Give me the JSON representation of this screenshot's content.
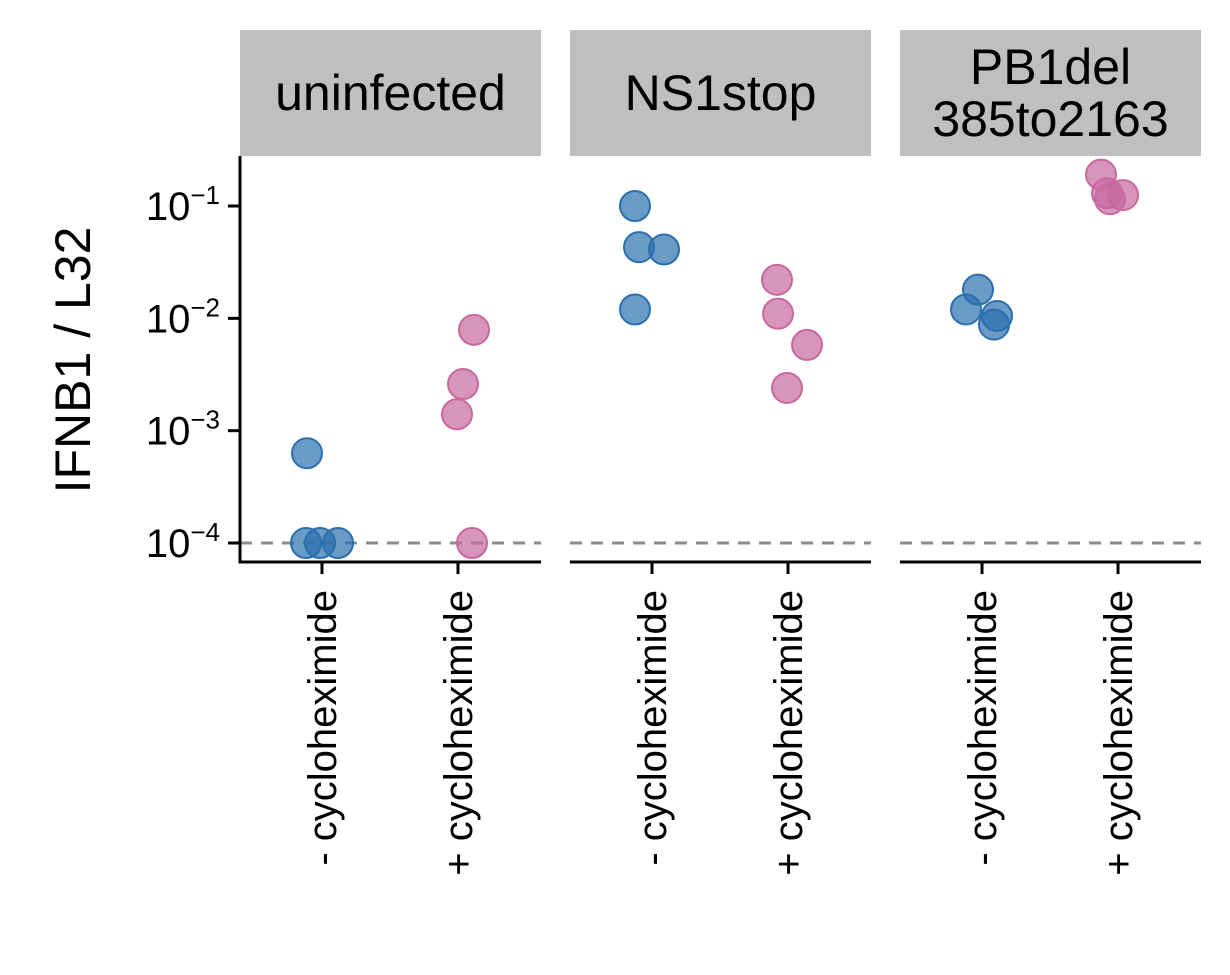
{
  "chart_data": {
    "type": "scatter",
    "ylabel": "IFNB1 / L32",
    "xlabel": "",
    "yscale": "log",
    "ylim": [
      7e-05,
      0.28
    ],
    "yticks": [
      {
        "value": 0.1,
        "base": "10",
        "exp": "−1"
      },
      {
        "value": 0.01,
        "base": "10",
        "exp": "−2"
      },
      {
        "value": 0.001,
        "base": "10",
        "exp": "−3"
      },
      {
        "value": 0.0001,
        "base": "10",
        "exp": "−4"
      }
    ],
    "detection_limit": 0.0001,
    "categories": [
      "- cycloheximide",
      "+ cycloheximide"
    ],
    "facets": [
      {
        "label_lines": [
          "uninfected"
        ],
        "points": [
          {
            "category": "- cycloheximide",
            "values": [
              0.00063,
              0.0001,
              0.0001,
              0.0001
            ]
          },
          {
            "category": "+ cycloheximide",
            "values": [
              0.0079,
              0.0026,
              0.0014,
              0.0001
            ]
          }
        ]
      },
      {
        "label_lines": [
          "NS1stop"
        ],
        "points": [
          {
            "category": "- cycloheximide",
            "values": [
              0.1,
              0.043,
              0.041,
              0.012
            ]
          },
          {
            "category": "+ cycloheximide",
            "values": [
              0.022,
              0.011,
              0.0058,
              0.0024
            ]
          }
        ]
      },
      {
        "label_lines": [
          "PB1del",
          "385to2163"
        ],
        "points": [
          {
            "category": "- cycloheximide",
            "values": [
              0.018,
              0.012,
              0.0105,
              0.0088
            ]
          },
          {
            "category": "+ cycloheximide",
            "values": [
              0.19,
              0.13,
              0.125,
              0.115
            ]
          }
        ]
      }
    ],
    "colors": {
      "minus": "#2b6fae",
      "plus": "#c8689f",
      "facet_strip": "#bfbfbf",
      "dashed_line": "#8c8c8c"
    },
    "grid": false,
    "legend": "none"
  }
}
